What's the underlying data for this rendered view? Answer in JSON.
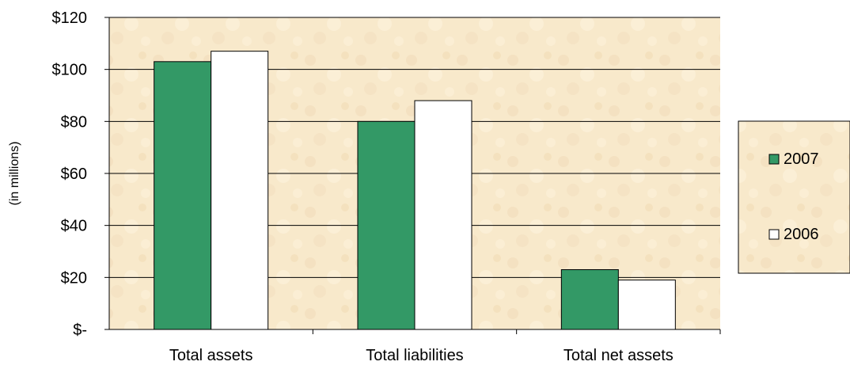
{
  "chart_data": {
    "type": "bar",
    "ylabel": "(in millions)",
    "categories": [
      "Total assets",
      "Total liabilities",
      "Total net assets"
    ],
    "series": [
      {
        "name": "2007",
        "values": [
          103,
          80,
          23
        ],
        "color": "#339966"
      },
      {
        "name": "2006",
        "values": [
          107,
          88,
          19
        ],
        "color": "#ffffff"
      }
    ],
    "ylim": [
      0,
      120
    ],
    "yticks": [
      0,
      20,
      40,
      60,
      80,
      100,
      120
    ],
    "ytick_labels": [
      "$-",
      "$20",
      "$40",
      "$60",
      "$80",
      "$100",
      "$120"
    ],
    "grid": true,
    "legend_position": "right",
    "plot_background": "#f7e8c8",
    "colors": {
      "grid": "#000000",
      "bar_edge": "#000000",
      "legend_border": "#000000"
    }
  }
}
